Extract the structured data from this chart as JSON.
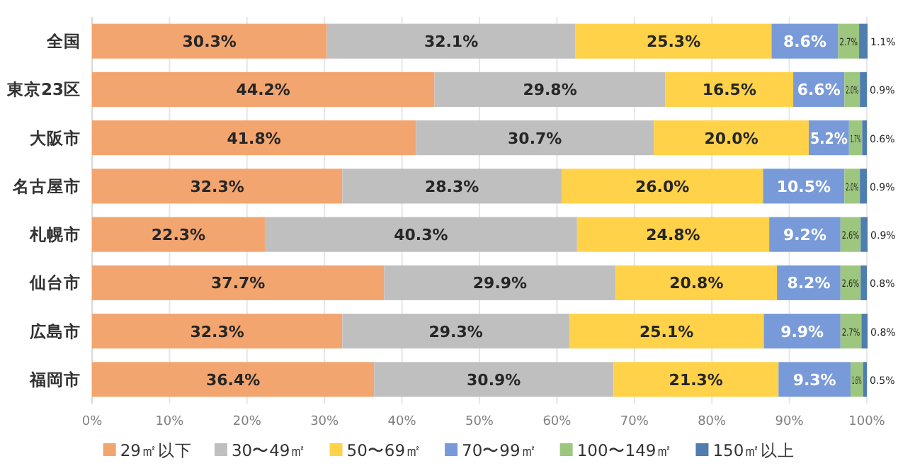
{
  "chart_data": {
    "type": "bar",
    "orientation": "horizontal",
    "stacked": true,
    "grid": "x",
    "legend": "bottom",
    "categories": [
      "全国",
      "東京23区",
      "大阪市",
      "名古屋市",
      "札幌市",
      "仙台市",
      "広島市",
      "福岡市"
    ],
    "xlim": [
      0,
      100
    ],
    "xticks": [
      {
        "value": 0,
        "label": "0%"
      },
      {
        "value": 10,
        "label": "10%"
      },
      {
        "value": 20,
        "label": "20%"
      },
      {
        "value": 30,
        "label": "30%"
      },
      {
        "value": 40,
        "label": "40%"
      },
      {
        "value": 50,
        "label": "50%"
      },
      {
        "value": 60,
        "label": "60%"
      },
      {
        "value": 70,
        "label": "70%"
      },
      {
        "value": 80,
        "label": "80%"
      },
      {
        "value": 90,
        "label": "90%"
      },
      {
        "value": 100,
        "label": "100%"
      }
    ],
    "series": [
      {
        "name": "29㎡以下",
        "color": "#f3a56f",
        "values": [
          30.3,
          44.2,
          41.8,
          32.3,
          22.3,
          37.7,
          32.3,
          36.4
        ],
        "value_labels": [
          "30.3%",
          "44.2%",
          "41.8%",
          "32.3%",
          "22.3%",
          "37.7%",
          "32.3%",
          "36.4%"
        ]
      },
      {
        "name": "30〜49㎡",
        "color": "#bfbfbf",
        "values": [
          32.1,
          29.8,
          30.7,
          28.3,
          40.3,
          29.9,
          29.3,
          30.9
        ],
        "value_labels": [
          "32.1%",
          "29.8%",
          "30.7%",
          "28.3%",
          "40.3%",
          "29.9%",
          "29.3%",
          "30.9%"
        ]
      },
      {
        "name": "50〜69㎡",
        "color": "#ffd24a",
        "values": [
          25.3,
          16.5,
          20.0,
          26.0,
          24.8,
          20.8,
          25.1,
          21.3
        ],
        "value_labels": [
          "25.3%",
          "16.5%",
          "20.0%",
          "26.0%",
          "24.8%",
          "20.8%",
          "25.1%",
          "21.3%"
        ]
      },
      {
        "name": "70〜99㎡",
        "color": "#789ad9",
        "values": [
          8.6,
          6.6,
          5.2,
          10.5,
          9.2,
          8.2,
          9.9,
          9.3
        ],
        "value_labels": [
          "8.6%",
          "6.6%",
          "5.2%",
          "10.5%",
          "9.2%",
          "8.2%",
          "9.9%",
          "9.3%"
        ]
      },
      {
        "name": "100〜149㎡",
        "color": "#9dc77e",
        "values": [
          2.7,
          2.0,
          1.7,
          2.0,
          2.6,
          2.6,
          2.7,
          1.6
        ],
        "value_labels": [
          "2.7%",
          "2.0%",
          "1.7%",
          "2.0%",
          "2.6%",
          "2.6%",
          "2.7%",
          "1.6%"
        ]
      },
      {
        "name": "150㎡以上",
        "color": "#4f7db0",
        "values": [
          1.1,
          0.9,
          0.6,
          0.9,
          0.9,
          0.8,
          0.8,
          0.5
        ],
        "value_labels": [
          "1.1%",
          "0.9%",
          "0.6%",
          "0.9%",
          "0.9%",
          "0.8%",
          "0.8%",
          "0.5%"
        ]
      }
    ]
  }
}
